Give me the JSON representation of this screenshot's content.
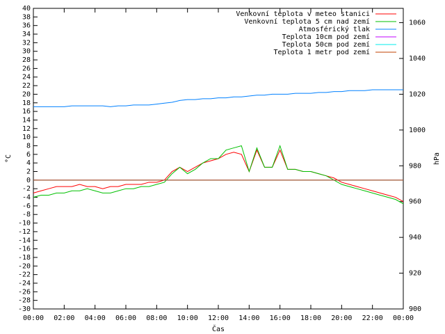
{
  "chart_data": {
    "type": "line",
    "xlabel": "Čas",
    "ylabel": "°C",
    "y2label": "hPa",
    "x": [
      0,
      0.5,
      1,
      1.5,
      2,
      2.5,
      3,
      3.5,
      4,
      4.5,
      5,
      5.5,
      6,
      6.5,
      7,
      7.5,
      8,
      8.5,
      9,
      9.5,
      10,
      10.5,
      11,
      11.5,
      12,
      12.5,
      13,
      13.5,
      14,
      14.5,
      15,
      15.5,
      16,
      16.5,
      17,
      17.5,
      18,
      18.5,
      19,
      19.5,
      20,
      20.5,
      21,
      21.5,
      22,
      22.5,
      23,
      23.5,
      24
    ],
    "xlim": [
      0,
      24
    ],
    "xticks": [
      {
        "value": 0,
        "label": "00:00"
      },
      {
        "value": 2,
        "label": "02:00"
      },
      {
        "value": 4,
        "label": "04:00"
      },
      {
        "value": 6,
        "label": "06:00"
      },
      {
        "value": 8,
        "label": "08:00"
      },
      {
        "value": 10,
        "label": "10:00"
      },
      {
        "value": 12,
        "label": "12:00"
      },
      {
        "value": 14,
        "label": "14:00"
      },
      {
        "value": 16,
        "label": "16:00"
      },
      {
        "value": 18,
        "label": "18:00"
      },
      {
        "value": 20,
        "label": "20:00"
      },
      {
        "value": 22,
        "label": "22:00"
      },
      {
        "value": 24,
        "label": "00:00"
      }
    ],
    "ylim": [
      -30,
      40
    ],
    "yticks": [
      -30,
      -28,
      -26,
      -24,
      -22,
      -20,
      -18,
      -16,
      -14,
      -12,
      -10,
      -8,
      -6,
      -4,
      -2,
      0,
      2,
      4,
      6,
      8,
      10,
      12,
      14,
      16,
      18,
      20,
      22,
      24,
      26,
      28,
      30,
      32,
      34,
      36,
      38,
      40
    ],
    "y2lim": [
      900,
      1068
    ],
    "y2ticks": [
      900,
      920,
      940,
      960,
      980,
      1000,
      1020,
      1040,
      1060
    ],
    "legend": "top-right",
    "series": [
      {
        "name": "Venkovní teplota v meteo stanici",
        "color": "#ff0000",
        "values": [
          -3,
          -2.5,
          -2,
          -1.5,
          -1.5,
          -1.5,
          -1,
          -1.5,
          -1.5,
          -2,
          -1.5,
          -1.5,
          -1,
          -1,
          -1,
          -0.5,
          -0.5,
          0,
          2,
          3,
          2,
          3,
          4,
          4.5,
          5,
          6,
          6.5,
          6,
          2,
          7,
          3,
          3,
          7,
          2.5,
          2.5,
          2,
          2,
          1.5,
          1,
          0.5,
          -0.5,
          -1,
          -1.5,
          -2,
          -2.5,
          -3,
          -3.5,
          -4,
          -5
        ]
      },
      {
        "name": "Venkovní teplota 5 cm nad zemí",
        "color": "#00c000",
        "values": [
          -4,
          -3.5,
          -3.5,
          -3,
          -3,
          -2.5,
          -2.5,
          -2,
          -2.5,
          -3,
          -3,
          -2.5,
          -2,
          -2,
          -1.5,
          -1.5,
          -1,
          -0.5,
          1.5,
          3,
          1.5,
          2.5,
          4,
          5,
          5,
          7,
          7.5,
          8,
          2,
          7.5,
          3,
          3,
          8,
          2.5,
          2.5,
          2,
          2,
          1.5,
          1,
          0,
          -1,
          -1.5,
          -2,
          -2.5,
          -3,
          -3.5,
          -4,
          -4.5,
          -5.5
        ]
      },
      {
        "name": "Atmosférický tlak",
        "color": "#0080ff",
        "axis": "y2",
        "values": [
          1013,
          1013,
          1013,
          1013,
          1013,
          1013.5,
          1013.5,
          1013.5,
          1013.5,
          1013.5,
          1013,
          1013.5,
          1013.5,
          1014,
          1014,
          1014,
          1014.5,
          1015,
          1015.5,
          1016.5,
          1017,
          1017,
          1017.5,
          1017.5,
          1018,
          1018,
          1018.5,
          1018.5,
          1019,
          1019.5,
          1019.5,
          1020,
          1020,
          1020,
          1020.5,
          1020.5,
          1020.5,
          1021,
          1021,
          1021.5,
          1021.5,
          1022,
          1022,
          1022,
          1022.5,
          1022.5,
          1022.5,
          1022.5,
          1022.5
        ]
      },
      {
        "name": "Teplota 10cm pod zemí",
        "color": "#c000ff",
        "values": [
          0,
          0,
          0,
          0,
          0,
          0,
          0,
          0,
          0,
          0,
          0,
          0,
          0,
          0,
          0,
          0,
          0,
          0,
          0,
          0,
          0,
          0,
          0,
          0,
          0,
          0,
          0,
          0,
          0,
          0,
          0,
          0,
          0,
          0,
          0,
          0,
          0,
          0,
          0,
          0,
          0,
          0,
          0,
          0,
          0,
          0,
          0,
          0,
          0
        ]
      },
      {
        "name": "Teplota 50cm pod zemí",
        "color": "#00eeee",
        "values": [
          0,
          0,
          0,
          0,
          0,
          0,
          0,
          0,
          0,
          0,
          0,
          0,
          0,
          0,
          0,
          0,
          0,
          0,
          0,
          0,
          0,
          0,
          0,
          0,
          0,
          0,
          0,
          0,
          0,
          0,
          0,
          0,
          0,
          0,
          0,
          0,
          0,
          0,
          0,
          0,
          0,
          0,
          0,
          0,
          0,
          0,
          0,
          0,
          0
        ]
      },
      {
        "name": "Teplota 1 metr pod zemí",
        "color": "#c04000",
        "values": [
          0,
          0,
          0,
          0,
          0,
          0,
          0,
          0,
          0,
          0,
          0,
          0,
          0,
          0,
          0,
          0,
          0,
          0,
          0,
          0,
          0,
          0,
          0,
          0,
          0,
          0,
          0,
          0,
          0,
          0,
          0,
          0,
          0,
          0,
          0,
          0,
          0,
          0,
          0,
          0,
          0,
          0,
          0,
          0,
          0,
          0,
          0,
          0,
          0
        ]
      }
    ]
  }
}
